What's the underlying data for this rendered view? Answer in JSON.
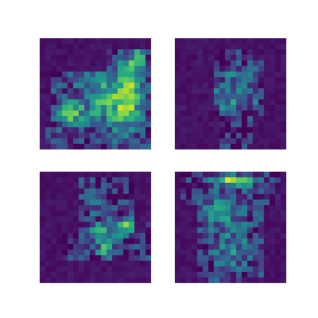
{
  "chart_data": [
    {
      "type": "heatmap",
      "colormap": "viridis",
      "vmin": 0,
      "vmax": 1,
      "grid": false,
      "axes_visible": false,
      "rows": 20,
      "cols": 20,
      "blobs": [
        [
          0.55,
          0.62,
          0.28,
          0.3,
          0.45
        ],
        [
          0.68,
          0.25,
          0.1,
          0.12,
          0.55
        ],
        [
          0.15,
          0.88,
          0.18,
          0.08,
          0.35
        ],
        [
          0.5,
          0.8,
          0.35,
          0.12,
          0.4
        ]
      ],
      "mask": [
        [
          0.3,
          1.0,
          0.1,
          0.95
        ],
        [
          0.1,
          1.0,
          0.6,
          0.98
        ],
        [
          0.78,
          0.96,
          0.05,
          0.95
        ]
      ],
      "noise_seed": 11
    },
    {
      "type": "heatmap",
      "colormap": "viridis",
      "vmin": 0,
      "vmax": 1,
      "grid": false,
      "axes_visible": false,
      "rows": 20,
      "cols": 20,
      "blobs": [
        [
          0.55,
          0.45,
          0.1,
          0.3,
          0.35
        ],
        [
          0.55,
          0.12,
          0.06,
          0.05,
          0.7
        ],
        [
          0.35,
          0.55,
          0.12,
          0.15,
          0.25
        ]
      ],
      "mask": [
        [
          0.2,
          0.72,
          0.33,
          0.78
        ],
        [
          0.08,
          0.95,
          0.38,
          0.68
        ],
        [
          0.7,
          0.98,
          0.42,
          0.66
        ]
      ],
      "noise_seed": 23
    },
    {
      "type": "heatmap",
      "colormap": "viridis",
      "vmin": 0,
      "vmax": 1,
      "grid": false,
      "axes_visible": false,
      "rows": 20,
      "cols": 20,
      "blobs": [
        [
          0.55,
          0.6,
          0.12,
          0.18,
          0.4
        ],
        [
          0.72,
          0.58,
          0.05,
          0.05,
          0.7
        ],
        [
          0.48,
          0.78,
          0.06,
          0.07,
          0.55
        ],
        [
          0.28,
          0.45,
          0.08,
          0.08,
          0.3
        ]
      ],
      "mask": [
        [
          0.05,
          0.75,
          0.35,
          0.85
        ],
        [
          0.55,
          0.78,
          0.2,
          1.0
        ],
        [
          0.45,
          0.6,
          0.95,
          1.0
        ]
      ],
      "noise_seed": 37
    },
    {
      "type": "heatmap",
      "colormap": "viridis",
      "vmin": 0,
      "vmax": 1,
      "grid": false,
      "axes_visible": false,
      "rows": 20,
      "cols": 20,
      "blobs": [
        [
          0.08,
          0.55,
          0.05,
          0.22,
          0.75
        ],
        [
          0.35,
          0.4,
          0.15,
          0.28,
          0.3
        ],
        [
          0.7,
          0.5,
          0.2,
          0.18,
          0.3
        ]
      ],
      "mask": [
        [
          0.0,
          0.28,
          0.05,
          0.95
        ],
        [
          0.25,
          0.95,
          0.2,
          0.8
        ],
        [
          0.8,
          0.98,
          0.3,
          0.62
        ]
      ],
      "noise_seed": 53
    }
  ]
}
